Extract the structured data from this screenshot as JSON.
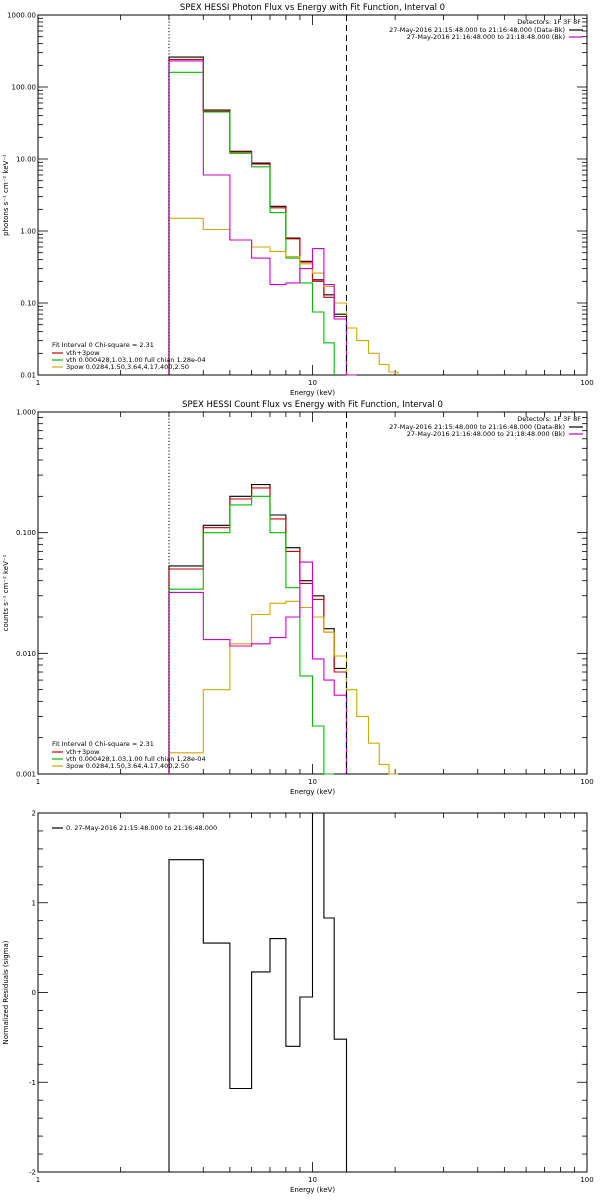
{
  "panels": [
    {
      "key": "photon",
      "title": "SPEX HESSI Photon Flux vs Energy with Fit Function, Interval 0",
      "xlabel": "Energy (keV)",
      "ylabel": "photons s⁻¹ cm⁻² keV⁻¹",
      "xscale": "log",
      "yscale": "log",
      "xlim": [
        1,
        100
      ],
      "ylim": [
        0.01,
        1000
      ],
      "xticks": [
        1,
        10,
        100
      ],
      "xticklabels": [
        "1",
        "10",
        "100"
      ],
      "yticks": [
        0.01,
        0.1,
        1,
        10,
        100,
        1000
      ],
      "yticklabels": [
        "0.01",
        "0.10",
        "1.00",
        "10.00",
        "100.00",
        "1000.00"
      ],
      "vlines": [
        {
          "x": 3,
          "style": "dotted"
        },
        {
          "x": 13.3,
          "style": "dashed"
        }
      ],
      "legend_tr": {
        "header": "Detectors: 1F 3F 8F",
        "entries": [
          {
            "text": "27-May-2016 21:15:48.000 to 21:16:48.000 (Data-Bk)",
            "color": "#000000"
          },
          {
            "text": "27-May-2016 21:16:48.000 to 21:18:48.000 (Bk)",
            "color": "#cc00cc"
          }
        ]
      },
      "legend_bl": {
        "header": "Fit Interval 0   Chi-square = 2.31",
        "entries": [
          {
            "text": "vth+3pow",
            "color": "#cc0000"
          },
          {
            "text": "vth 0.000428,1.03,1.00  full chian 1.28e-04",
            "color": "#00bb00"
          },
          {
            "text": "3pow 0.0284,1.50,3.64,4.17,400,2.50",
            "color": "#ccaa00"
          }
        ]
      },
      "series": [
        {
          "name": "Data-Bk",
          "color": "#000000",
          "edges": [
            3,
            4,
            5,
            6,
            7,
            8,
            9,
            10,
            11,
            12,
            13.3
          ],
          "values": [
            260,
            48,
            12.8,
            8.8,
            2.2,
            0.8,
            0.38,
            0.21,
            0.13,
            0.07
          ]
        },
        {
          "name": "vth+3pow",
          "color": "#cc0000",
          "edges": [
            3,
            4,
            5,
            6,
            7,
            8,
            9,
            10,
            11,
            12,
            13.3
          ],
          "values": [
            240,
            46,
            12.5,
            8.5,
            2.1,
            0.78,
            0.37,
            0.2,
            0.12,
            0.065
          ]
        },
        {
          "name": "vth",
          "color": "#00bb00",
          "edges": [
            3,
            4,
            5,
            6,
            7,
            8,
            9,
            10,
            11,
            12
          ],
          "values": [
            160,
            45,
            12,
            7.8,
            1.8,
            0.42,
            0.19,
            0.075,
            0.028,
            0.01
          ]
        },
        {
          "name": "3pow",
          "color": "#ccaa00",
          "edges": [
            3,
            4,
            5,
            6,
            7,
            8,
            9,
            10,
            11,
            12,
            13.3,
            14.5,
            16,
            17.5,
            19,
            20.5
          ],
          "values": [
            1.5,
            1.05,
            0.75,
            0.6,
            0.52,
            0.44,
            0.35,
            0.26,
            0.17,
            0.1,
            0.045,
            0.03,
            0.02,
            0.014,
            0.011
          ]
        },
        {
          "name": "Bk",
          "color": "#cc00cc",
          "edges": [
            3,
            4,
            5,
            6,
            7,
            8,
            9,
            10,
            11,
            12,
            13.3,
            14.5
          ],
          "values": [
            230,
            6,
            0.75,
            0.42,
            0.18,
            0.19,
            0.3,
            0.57,
            0.18,
            0.06,
            0.01
          ]
        }
      ]
    },
    {
      "key": "count",
      "title": "SPEX HESSI Count Flux vs Energy with Fit Function, Interval 0",
      "xlabel": "Energy (keV)",
      "ylabel": "counts s⁻¹ cm⁻² keV⁻¹",
      "xscale": "log",
      "yscale": "log",
      "xlim": [
        1,
        100
      ],
      "ylim": [
        0.001,
        1
      ],
      "xticks": [
        1,
        10,
        100
      ],
      "xticklabels": [
        "1",
        "10",
        "100"
      ],
      "yticks": [
        0.001,
        0.01,
        0.1,
        1
      ],
      "yticklabels": [
        "0.001",
        "0.010",
        "0.100",
        "1.000"
      ],
      "vlines": [
        {
          "x": 3,
          "style": "dotted"
        },
        {
          "x": 13.3,
          "style": "dashed"
        }
      ],
      "legend_tr": {
        "header": "Detectors: 1F 3F 8F",
        "entries": [
          {
            "text": "27-May-2016 21:15:48.000 to 21:16:48.000 (Data-Bk)",
            "color": "#000000"
          },
          {
            "text": "27-May-2016 21:16:48.000 to 21:18:48.000 (Bk)",
            "color": "#cc00cc"
          }
        ]
      },
      "legend_bl": {
        "header": "Fit Interval 0   Chi-square = 2.31",
        "entries": [
          {
            "text": "vth+3pow",
            "color": "#cc0000"
          },
          {
            "text": "vth 0.000428,1.03,1.00  full chian 1.28e-04",
            "color": "#00bb00"
          },
          {
            "text": "3pow 0.0284,1.50,3.64,4.17,400,2.50",
            "color": "#ccaa00"
          }
        ]
      },
      "series": [
        {
          "name": "Data-Bk",
          "color": "#000000",
          "edges": [
            3,
            4,
            5,
            6,
            7,
            8,
            9,
            10,
            11,
            12,
            13.3
          ],
          "values": [
            0.053,
            0.115,
            0.2,
            0.25,
            0.14,
            0.075,
            0.04,
            0.03,
            0.016,
            0.0075
          ]
        },
        {
          "name": "vth+3pow",
          "color": "#cc0000",
          "edges": [
            3,
            4,
            5,
            6,
            7,
            8,
            9,
            10,
            11,
            12,
            13.3
          ],
          "values": [
            0.05,
            0.11,
            0.19,
            0.235,
            0.13,
            0.07,
            0.038,
            0.028,
            0.015,
            0.007
          ]
        },
        {
          "name": "vth",
          "color": "#00bb00",
          "edges": [
            3,
            4,
            5,
            6,
            7,
            8,
            9,
            10,
            11,
            12
          ],
          "values": [
            0.034,
            0.1,
            0.17,
            0.2,
            0.1,
            0.035,
            0.0065,
            0.0025,
            0.001
          ]
        },
        {
          "name": "3pow",
          "color": "#ccaa00",
          "edges": [
            3,
            4,
            5,
            6,
            7,
            8,
            9,
            10,
            11,
            12,
            13.3,
            14.5,
            16,
            17.5,
            19,
            20.5
          ],
          "values": [
            0.0015,
            0.005,
            0.012,
            0.021,
            0.026,
            0.027,
            0.024,
            0.02,
            0.015,
            0.0095,
            0.005,
            0.003,
            0.0018,
            0.0012,
            0.001
          ]
        },
        {
          "name": "Bk",
          "color": "#cc00cc",
          "edges": [
            3,
            4,
            5,
            6,
            7,
            8,
            9,
            10,
            11,
            12,
            13.3
          ],
          "values": [
            0.032,
            0.013,
            0.0115,
            0.012,
            0.0135,
            0.02,
            0.057,
            0.009,
            0.006,
            0.0045
          ]
        }
      ]
    },
    {
      "key": "residuals",
      "title": "",
      "xlabel": "Energy (keV)",
      "ylabel": "Normalized Residuals (sigma)",
      "xscale": "log",
      "yscale": "linear",
      "xlim": [
        1,
        100
      ],
      "ylim": [
        -2,
        2
      ],
      "xticks": [
        1,
        10,
        100
      ],
      "xticklabels": [
        "1",
        "10",
        "100"
      ],
      "yticks": [
        -2,
        -1,
        0,
        1,
        2
      ],
      "yticklabels": [
        "-2",
        "-1",
        "0",
        "1",
        "2"
      ],
      "vlines": [],
      "legend_tl": {
        "entries": [
          {
            "text": "0. 27-May-2016 21:15:48.000 to 21:16:48.000",
            "color": "#000000"
          }
        ]
      },
      "series": [
        {
          "name": "residuals",
          "color": "#000000",
          "edges": [
            3,
            4,
            5,
            6,
            7,
            8,
            9,
            10,
            11,
            12,
            13.3
          ],
          "values": [
            1.48,
            0.55,
            -1.07,
            0.23,
            0.6,
            -0.6,
            -0.05,
            2.0,
            0.83,
            -0.52
          ],
          "baseline": -2
        }
      ]
    }
  ]
}
